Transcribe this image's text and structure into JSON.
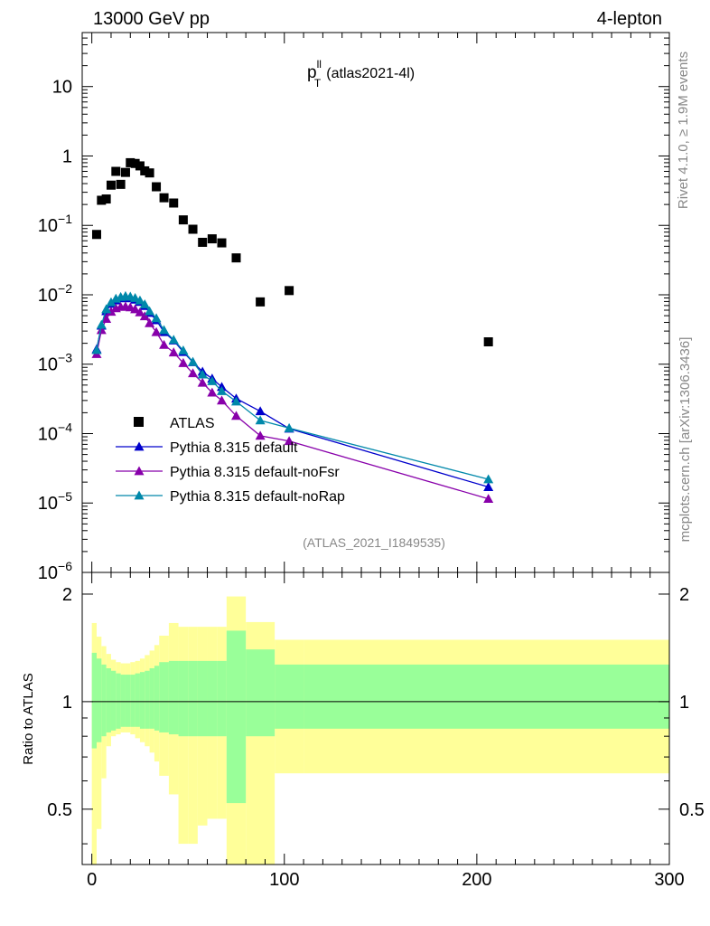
{
  "header": {
    "energy_label": "13000 GeV pp",
    "process_label": "4-lepton"
  },
  "side_labels": {
    "rivet_version": "Rivet 4.1.0, ≥ 1.9M events",
    "site": "mcplots.cern.ch [arXiv:1306.3436]"
  },
  "chart_data": [
    {
      "type": "scatter",
      "panel": "main",
      "title_main": "p",
      "title_super": "ll",
      "title_sub": "T",
      "title_suffix": "(atlas2021-4l)",
      "analysis_label": "(ATLAS_2021_I1849535)",
      "yscale": "log",
      "xlim": [
        -5,
        300
      ],
      "ylim": [
        1e-06,
        60
      ],
      "ytick_labels": [
        {
          "base": "10",
          "exp": "",
          "value": 10
        },
        {
          "base": "1",
          "exp": "",
          "value": 1
        },
        {
          "base": "10",
          "exp": "−1",
          "value": 0.1
        },
        {
          "base": "10",
          "exp": "−2",
          "value": 0.01
        },
        {
          "base": "10",
          "exp": "−3",
          "value": 0.001
        },
        {
          "base": "10",
          "exp": "−4",
          "value": 0.0001
        },
        {
          "base": "10",
          "exp": "−5",
          "value": 1e-05
        },
        {
          "base": "10",
          "exp": "−6",
          "value": 1e-06
        }
      ],
      "legend_position": "bottom-left",
      "series": [
        {
          "name": "ATLAS",
          "marker": "square",
          "color": "#000000",
          "x": [
            2.5,
            5,
            7.5,
            10,
            12.5,
            15,
            17.5,
            20,
            22.5,
            25,
            27.5,
            30,
            33.5,
            37.5,
            42.5,
            47.5,
            52.5,
            57.5,
            62.5,
            67.5,
            75,
            87.5,
            102.5,
            206
          ],
          "y": [
            0.074,
            0.23,
            0.24,
            0.38,
            0.6,
            0.39,
            0.58,
            0.8,
            0.78,
            0.72,
            0.61,
            0.57,
            0.36,
            0.25,
            0.21,
            0.12,
            0.088,
            0.057,
            0.064,
            0.056,
            0.034,
            0.0079,
            0.0115,
            0.0021
          ]
        },
        {
          "name": "Pythia 8.315 default",
          "marker": "triangle",
          "color": "#0000cc",
          "x": [
            2.5,
            5,
            7.5,
            10,
            12.5,
            15,
            17.5,
            20,
            22.5,
            25,
            27.5,
            30,
            33.5,
            37.5,
            42.5,
            47.5,
            52.5,
            57.5,
            62.5,
            67.5,
            75,
            87.5,
            102.5,
            206
          ],
          "y": [
            0.00165,
            0.0036,
            0.0058,
            0.0074,
            0.0083,
            0.0089,
            0.009,
            0.0089,
            0.0085,
            0.0079,
            0.0069,
            0.0055,
            0.0043,
            0.0029,
            0.0022,
            0.0015,
            0.00107,
            0.00078,
            0.00062,
            0.00047,
            0.00032,
            0.00021,
            0.000118,
            1.7e-05
          ]
        },
        {
          "name": "Pythia 8.315 default-noFsr",
          "marker": "triangle",
          "color": "#8800aa",
          "x": [
            2.5,
            5,
            7.5,
            10,
            12.5,
            15,
            17.5,
            20,
            22.5,
            25,
            27.5,
            30,
            33.5,
            37.5,
            42.5,
            47.5,
            52.5,
            57.5,
            62.5,
            67.5,
            75,
            87.5,
            102.5,
            206
          ],
          "y": [
            0.0014,
            0.0031,
            0.0045,
            0.0057,
            0.0064,
            0.0067,
            0.0068,
            0.0066,
            0.0062,
            0.0056,
            0.0049,
            0.0039,
            0.0029,
            0.0019,
            0.00148,
            0.00104,
            0.00074,
            0.00054,
            0.00039,
            0.0003,
            0.00018,
            9.3e-05,
            7.8e-05,
            1.15e-05
          ]
        },
        {
          "name": "Pythia 8.315 default-noRap",
          "marker": "triangle",
          "color": "#0088aa",
          "x": [
            2.5,
            5,
            7.5,
            10,
            12.5,
            15,
            17.5,
            20,
            22.5,
            25,
            27.5,
            30,
            33.5,
            37.5,
            42.5,
            47.5,
            52.5,
            57.5,
            62.5,
            67.5,
            75,
            87.5,
            102.5,
            206
          ],
          "y": [
            0.0016,
            0.0037,
            0.0062,
            0.0078,
            0.0088,
            0.0093,
            0.0096,
            0.0094,
            0.009,
            0.0083,
            0.0073,
            0.0058,
            0.0046,
            0.0031,
            0.00225,
            0.00158,
            0.00108,
            0.00071,
            0.00057,
            0.00041,
            0.00029,
            0.000155,
            0.00012,
            2.2e-05
          ]
        }
      ]
    },
    {
      "type": "area",
      "panel": "ratio",
      "ylabel": "Ratio to ATLAS",
      "xlim": [
        -5,
        300
      ],
      "ylim": [
        0.35,
        2.3
      ],
      "xtick_labels": [
        "0",
        "100",
        "200",
        "300"
      ],
      "xtick_values": [
        0,
        100,
        200,
        300
      ],
      "ytick_labels": [
        "2",
        "1",
        "0.5"
      ],
      "ytick_values": [
        2,
        1,
        0.5
      ],
      "reference_line": 1,
      "bin_edges": [
        0,
        2.5,
        5,
        7.5,
        10,
        12.5,
        15,
        17.5,
        20,
        22.5,
        25,
        27.5,
        30,
        32.5,
        35,
        40,
        45,
        50,
        55,
        60,
        65,
        70,
        80,
        95,
        110,
        300
      ],
      "band_green": {
        "color": "#99ff99",
        "low": [
          0.74,
          0.77,
          0.8,
          0.82,
          0.83,
          0.84,
          0.85,
          0.85,
          0.85,
          0.85,
          0.84,
          0.84,
          0.84,
          0.83,
          0.82,
          0.81,
          0.8,
          0.8,
          0.8,
          0.8,
          0.8,
          0.52,
          0.8,
          0.84,
          0.84
        ],
        "high": [
          1.37,
          1.32,
          1.27,
          1.24,
          1.22,
          1.2,
          1.19,
          1.19,
          1.19,
          1.2,
          1.21,
          1.22,
          1.24,
          1.26,
          1.29,
          1.3,
          1.3,
          1.3,
          1.3,
          1.3,
          1.3,
          1.58,
          1.4,
          1.27,
          1.27
        ]
      },
      "band_yellow": {
        "color": "#ffff99",
        "low": [
          0.3,
          0.44,
          0.61,
          0.75,
          0.8,
          0.81,
          0.82,
          0.82,
          0.81,
          0.79,
          0.77,
          0.75,
          0.72,
          0.68,
          0.62,
          0.55,
          0.4,
          0.4,
          0.45,
          0.47,
          0.47,
          0.3,
          0.3,
          0.63,
          0.63
        ],
        "high": [
          1.66,
          1.52,
          1.43,
          1.36,
          1.31,
          1.29,
          1.28,
          1.28,
          1.29,
          1.3,
          1.32,
          1.35,
          1.39,
          1.44,
          1.53,
          1.66,
          1.62,
          1.62,
          1.62,
          1.62,
          1.62,
          1.97,
          1.67,
          1.49,
          1.49
        ]
      }
    }
  ]
}
